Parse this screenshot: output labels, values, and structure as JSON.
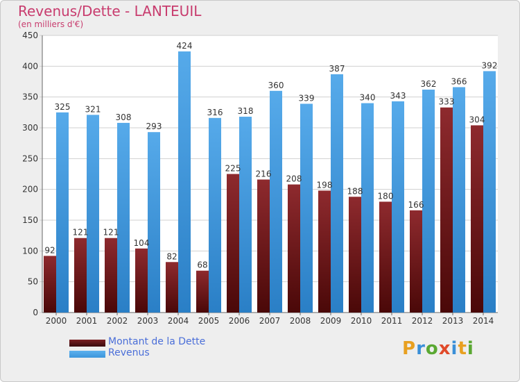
{
  "header": {
    "title": "Revenus/Dette - LANTEUIL",
    "subtitle": "(en milliers d'€)"
  },
  "brand": {
    "letters": [
      "P",
      "r",
      "o",
      "x",
      "i",
      "t",
      "i"
    ],
    "colors": [
      "#e8a020",
      "#3a8fd8",
      "#5aa832",
      "#e04a2a",
      "#3a8fd8",
      "#e8a020",
      "#5aa832"
    ]
  },
  "colors": {
    "dette": "#7a1e22",
    "revenus": "#3c96dc",
    "axis_text": "#333333",
    "grid": "#d0d0d0"
  },
  "chart_data": {
    "type": "bar",
    "categories": [
      "2000",
      "2001",
      "2002",
      "2003",
      "2004",
      "2005",
      "2006",
      "2007",
      "2008",
      "2009",
      "2010",
      "2011",
      "2012",
      "2013",
      "2014"
    ],
    "series": [
      {
        "name": "Montant de la Dette",
        "values": [
          92,
          121,
          121,
          104,
          82,
          68,
          225,
          216,
          208,
          198,
          188,
          180,
          166,
          333,
          304
        ]
      },
      {
        "name": "Revenus",
        "values": [
          325,
          321,
          308,
          293,
          424,
          316,
          318,
          360,
          339,
          387,
          340,
          343,
          362,
          366,
          392
        ]
      }
    ],
    "ylim": [
      0,
      450
    ],
    "yticks": [
      0,
      50,
      100,
      150,
      200,
      250,
      300,
      350,
      400,
      450
    ],
    "grid": true,
    "legend_position": "bottom-left"
  }
}
